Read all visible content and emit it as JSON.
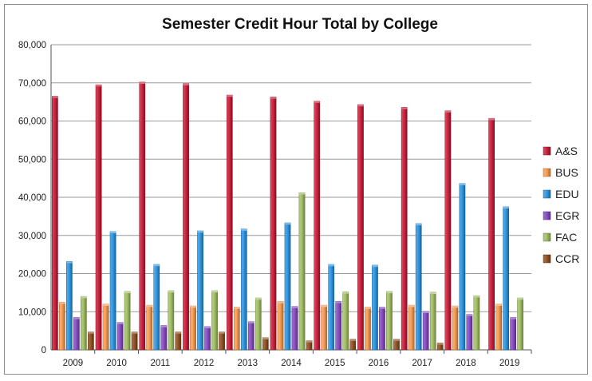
{
  "chart_data": {
    "type": "bar",
    "title": "Semester Credit Hour Total by College",
    "xlabel": "",
    "ylabel": "",
    "ylim": [
      0,
      80000
    ],
    "yticks": [
      "0",
      "10,000",
      "20,000",
      "30,000",
      "40,000",
      "50,000",
      "60,000",
      "70,000",
      "80,000"
    ],
    "grid": true,
    "legend_position": "right",
    "categories": [
      "2009",
      "2010",
      "2011",
      "2012",
      "2013",
      "2014",
      "2015",
      "2016",
      "2017",
      "2018",
      "2019"
    ],
    "series": [
      {
        "name": "A&S",
        "color": "#c8102e",
        "values": [
          66500,
          69500,
          70200,
          69800,
          66800,
          66300,
          65200,
          64300,
          63600,
          62700,
          60700
        ]
      },
      {
        "name": "BUS",
        "color": "#f79646",
        "values": [
          12500,
          12000,
          11700,
          11500,
          11200,
          12700,
          11700,
          11200,
          11700,
          11500,
          12000
        ]
      },
      {
        "name": "EDU",
        "color": "#1f8fe0",
        "values": [
          23200,
          31000,
          22400,
          31200,
          31700,
          33300,
          22400,
          22200,
          33100,
          43600,
          37500
        ]
      },
      {
        "name": "EGR",
        "color": "#7f3fbf",
        "values": [
          8500,
          7200,
          6400,
          6100,
          7400,
          11400,
          12700,
          11200,
          10100,
          9300,
          8500
        ]
      },
      {
        "name": "FAC",
        "color": "#9bbb59",
        "values": [
          14000,
          15300,
          15500,
          15500,
          13600,
          41200,
          15200,
          15300,
          15100,
          14200,
          13600
        ]
      },
      {
        "name": "CCR",
        "color": "#8b4513",
        "values": [
          4700,
          4700,
          4700,
          4700,
          3200,
          2400,
          2800,
          2800,
          1800,
          0,
          0
        ]
      }
    ]
  }
}
